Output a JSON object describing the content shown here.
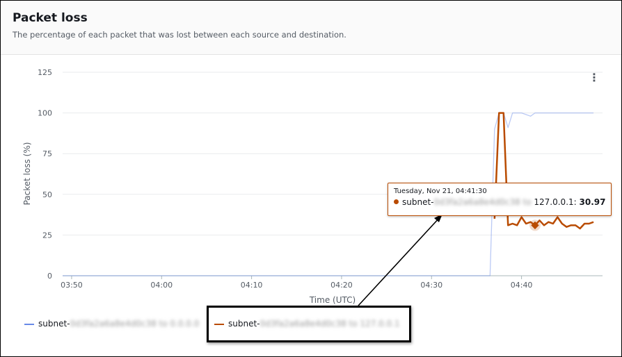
{
  "header": {
    "title": "Packet loss",
    "subtitle": "The percentage of each packet that was lost between each source and destination."
  },
  "menu_icon": "more-vertical-icon",
  "tooltip": {
    "date": "Tuesday, Nov 21, 04:41:30",
    "prefix": "subnet-",
    "hidden": "0d3fa2a6a8e4d0c38 to",
    "dest": " 127.0.0.1: ",
    "value": "30.97"
  },
  "legend": [
    {
      "prefix": "subnet-",
      "hidden": "0d3fa2a6a8e4d0c38 to 0.0.0.0",
      "color": "#688ae8"
    },
    {
      "prefix": "subnet-",
      "hidden": "0d3fa2a6a8e4d0c38 to 127.0.0.1",
      "color": "#b94b00"
    }
  ],
  "chart_data": {
    "type": "line",
    "xlabel": "Time (UTC)",
    "ylabel": "Packet loss (%)",
    "xticks": [
      "03:50",
      "04:00",
      "04:10",
      "04:20",
      "04:30",
      "04:40"
    ],
    "yticks": [
      "0",
      "25",
      "50",
      "75",
      "100",
      "125"
    ],
    "ylim": [
      0,
      125
    ],
    "xlim": [
      "03:49",
      "04:49"
    ],
    "grid": true,
    "series": [
      {
        "name": "subnet-0d3fa2a6a8e4d0c38 to 0.0.0.0",
        "color": "#688ae8",
        "x": [
          "03:49",
          "04:36:30",
          "04:37:00",
          "04:37:30",
          "04:38:00",
          "04:38:30",
          "04:39:00",
          "04:40:00",
          "04:41:00",
          "04:41:30",
          "04:48:00"
        ],
        "values": [
          0,
          0,
          90,
          100,
          100,
          91,
          100,
          100,
          98,
          100,
          100
        ]
      },
      {
        "name": "subnet-0d3fa2a6a8e4d0c38 to 127.0.0.1",
        "color": "#b94b00",
        "x": [
          "04:37:00",
          "04:37:30",
          "04:38:00",
          "04:38:30",
          "04:39:00",
          "04:39:30",
          "04:40:00",
          "04:40:30",
          "04:41:00",
          "04:41:30",
          "04:42:00",
          "04:42:30",
          "04:43:00",
          "04:43:30",
          "04:44:00",
          "04:44:30",
          "04:45:00",
          "04:45:30",
          "04:46:00",
          "04:46:30",
          "04:47:00",
          "04:47:30",
          "04:48:00"
        ],
        "values": [
          35,
          100,
          100,
          31,
          32,
          31,
          36,
          32,
          33,
          30.97,
          34,
          31,
          33,
          32,
          36,
          32,
          30,
          31,
          31,
          29,
          32,
          32,
          33
        ]
      }
    ],
    "highlight": {
      "series": 1,
      "x": "04:41:30",
      "value": 30.97
    }
  }
}
